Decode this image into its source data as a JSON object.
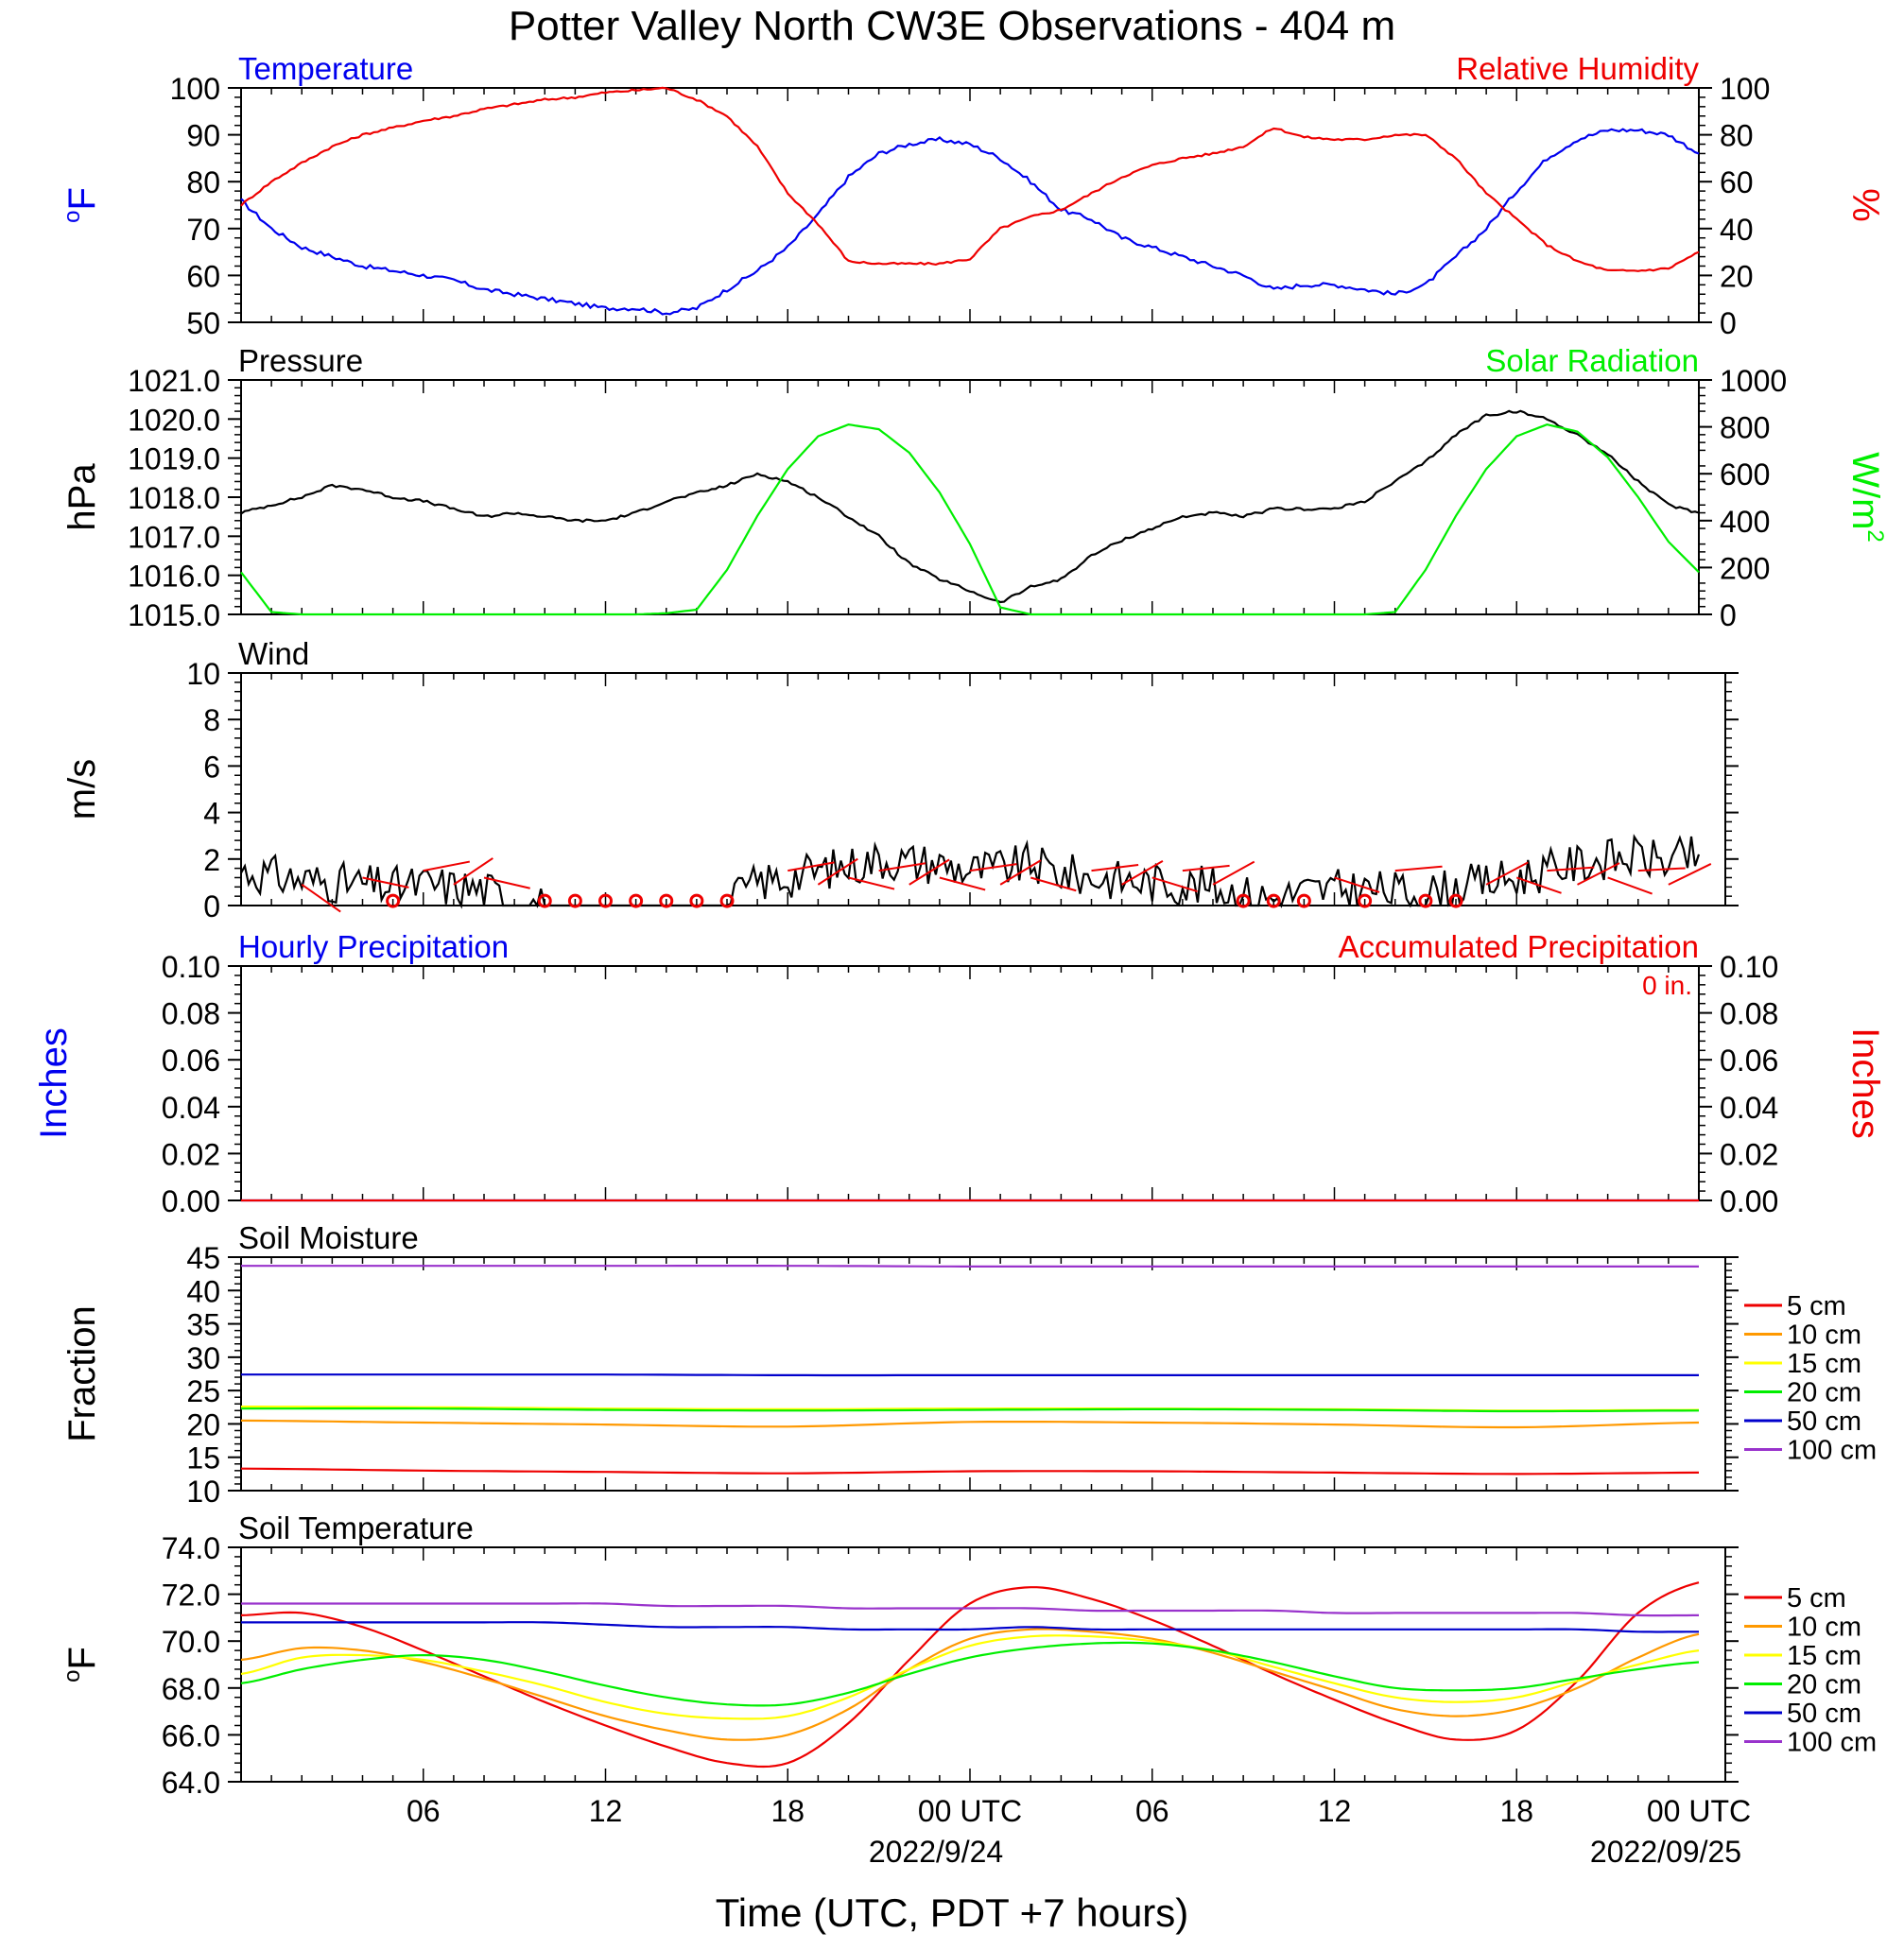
{
  "title": "Potter Valley North CW3E Observations - 404 m",
  "colors": {
    "temperature": "#0000ee",
    "humidity": "#ee0000",
    "pressure": "#000000",
    "solar": "#00ee00",
    "wind": "#000000",
    "barb": "#ee0000",
    "soil": [
      "#ee0000",
      "#ff9900",
      "#ffff00",
      "#00ee00",
      "#0000cc",
      "#9933cc"
    ]
  },
  "x_axis": {
    "title": "Time (UTC, PDT +7 hours)",
    "tick_labels": [
      "06",
      "12",
      "18",
      "00 UTC",
      "06",
      "12",
      "18",
      "00 UTC"
    ],
    "date_labels": [
      "2022/9/24",
      "2022/09/25"
    ]
  },
  "chart_data": [
    {
      "type": "line",
      "title_left": "Temperature",
      "title_right": "Relative Humidity",
      "ylabel_left": "oF",
      "ylabel_right": "%",
      "ylim_left": [
        50,
        100
      ],
      "ylim_right": [
        0,
        100
      ],
      "ticks_left": [
        "100",
        "90",
        "80",
        "70",
        "60",
        "50"
      ],
      "ticks_right": [
        "100",
        "80",
        "60",
        "40",
        "20",
        "0"
      ],
      "x_hours": [
        0,
        1,
        2,
        3,
        4,
        5,
        6,
        7,
        8,
        9,
        10,
        11,
        12,
        13,
        14,
        15,
        16,
        17,
        18,
        19,
        20,
        21,
        22,
        23,
        24,
        25,
        26,
        27,
        28,
        29,
        30,
        31,
        32,
        33,
        34,
        35,
        36,
        37,
        38,
        39,
        40,
        41,
        42,
        43,
        44,
        45,
        46,
        47,
        48
      ],
      "series": [
        {
          "name": "Temperature",
          "axis": "left",
          "values": [
            76,
            70,
            66,
            64,
            62,
            61,
            60,
            59,
            57,
            56,
            55,
            54,
            53,
            53,
            52,
            53,
            57,
            61,
            66,
            73,
            81,
            86,
            88,
            89,
            88,
            85,
            80,
            74,
            72,
            68,
            66,
            64,
            62,
            60,
            57,
            58,
            58,
            57,
            56,
            58,
            64,
            70,
            78,
            85,
            89,
            91,
            91,
            90,
            86
          ]
        },
        {
          "name": "Relative Humidity",
          "axis": "right",
          "values": [
            50,
            60,
            68,
            75,
            80,
            83,
            86,
            88,
            91,
            93,
            95,
            96,
            98,
            99,
            100,
            95,
            88,
            75,
            55,
            42,
            26,
            25,
            25,
            25,
            27,
            40,
            45,
            48,
            55,
            62,
            67,
            70,
            72,
            75,
            83,
            79,
            78,
            78,
            80,
            80,
            70,
            55,
            44,
            33,
            26,
            22,
            22,
            23,
            30
          ]
        }
      ]
    },
    {
      "type": "line",
      "title_left": "Pressure",
      "title_right": "Solar Radiation",
      "ylabel_left": "hPa",
      "ylabel_right": "W/m2",
      "ylim_left": [
        1015,
        1021
      ],
      "ylim_right": [
        0,
        1000
      ],
      "ticks_left": [
        "1021.0",
        "1020.0",
        "1019.0",
        "1018.0",
        "1017.0",
        "1016.0",
        "1015.0"
      ],
      "ticks_right": [
        "1000",
        "800",
        "600",
        "400",
        "200",
        "0"
      ],
      "x_hours": [
        0,
        1,
        2,
        3,
        4,
        5,
        6,
        7,
        8,
        9,
        10,
        11,
        12,
        13,
        14,
        15,
        16,
        17,
        18,
        19,
        20,
        21,
        22,
        23,
        24,
        25,
        26,
        27,
        28,
        29,
        30,
        31,
        32,
        33,
        34,
        35,
        36,
        37,
        38,
        39,
        40,
        41,
        42,
        43,
        44,
        45,
        46,
        47,
        48
      ],
      "series": [
        {
          "name": "Pressure",
          "axis": "left",
          "values": [
            1017.6,
            1017.8,
            1018.0,
            1018.3,
            1018.2,
            1018.0,
            1017.9,
            1017.7,
            1017.5,
            1017.6,
            1017.5,
            1017.4,
            1017.4,
            1017.6,
            1017.9,
            1018.1,
            1018.3,
            1018.6,
            1018.4,
            1018.0,
            1017.5,
            1017.0,
            1016.3,
            1015.9,
            1015.6,
            1015.3,
            1015.7,
            1015.9,
            1016.5,
            1016.9,
            1017.2,
            1017.5,
            1017.6,
            1017.5,
            1017.7,
            1017.7,
            1017.7,
            1017.9,
            1018.4,
            1018.9,
            1019.6,
            1020.1,
            1020.2,
            1020.0,
            1019.6,
            1019.1,
            1018.4,
            1017.8,
            1017.6
          ]
        },
        {
          "name": "Solar Radiation",
          "axis": "right",
          "values": [
            180,
            10,
            0,
            0,
            0,
            0,
            0,
            0,
            0,
            0,
            0,
            0,
            0,
            0,
            5,
            20,
            190,
            420,
            620,
            760,
            810,
            790,
            690,
            520,
            300,
            30,
            0,
            0,
            0,
            0,
            0,
            0,
            0,
            0,
            0,
            0,
            0,
            0,
            10,
            190,
            420,
            620,
            760,
            810,
            780,
            670,
            500,
            310,
            180
          ]
        }
      ]
    },
    {
      "type": "line",
      "title_left": "Wind",
      "ylabel_left": "m/s",
      "ylim_left": [
        0,
        10
      ],
      "ticks_left": [
        "10",
        "8",
        "6",
        "4",
        "2",
        "0"
      ],
      "x_hours": [
        0,
        1,
        2,
        3,
        4,
        5,
        6,
        7,
        8,
        9,
        10,
        11,
        12,
        13,
        14,
        15,
        16,
        17,
        18,
        19,
        20,
        21,
        22,
        23,
        24,
        25,
        26,
        27,
        28,
        29,
        30,
        31,
        32,
        33,
        34,
        35,
        36,
        37,
        38,
        39,
        40,
        41,
        42,
        43,
        44,
        45,
        46,
        47,
        48
      ],
      "series": [
        {
          "name": "Wind Speed",
          "values": [
            1.5,
            1.3,
            1.1,
            1.0,
            0.9,
            0.8,
            0.9,
            0.8,
            0.7,
            0.2,
            0.0,
            0.0,
            0.0,
            0.0,
            0.0,
            0.0,
            0.0,
            1.0,
            1.2,
            1.5,
            1.7,
            2.0,
            1.9,
            1.8,
            1.5,
            1.6,
            1.8,
            1.4,
            1.2,
            1.1,
            1.0,
            0.9,
            0.8,
            0.5,
            0.3,
            0.6,
            0.7,
            0.7,
            0.6,
            0.5,
            0.8,
            1.0,
            1.2,
            1.5,
            1.8,
            2.0,
            2.1,
            1.9,
            2.2
          ]
        }
      ],
      "calm_hours": [
        5,
        10,
        11,
        12,
        13,
        14,
        15,
        16,
        33,
        34,
        35,
        37,
        39,
        40
      ]
    },
    {
      "type": "line",
      "title_left": "Hourly Precipitation",
      "title_right": "Accumulated Precipitation",
      "accumulated_label": "0 in.",
      "ylabel_left": "Inches",
      "ylabel_right": "Inches",
      "ylim_left": [
        0,
        0.1
      ],
      "ylim_right": [
        0,
        0.1
      ],
      "ticks_left": [
        "0.10",
        "0.08",
        "0.06",
        "0.04",
        "0.02",
        "0.00"
      ],
      "ticks_right": [
        "0.10",
        "0.08",
        "0.06",
        "0.04",
        "0.02",
        "0.00"
      ],
      "x_hours": [
        0,
        48
      ],
      "series": [
        {
          "name": "Hourly Precipitation",
          "values": [
            0,
            0
          ]
        },
        {
          "name": "Accumulated Precipitation",
          "values": [
            0,
            0
          ]
        }
      ]
    },
    {
      "type": "line",
      "title_left": "Soil Moisture",
      "ylabel_left": "Fraction",
      "ylim_left": [
        10,
        45
      ],
      "ticks_left": [
        "45",
        "40",
        "35",
        "30",
        "25",
        "20",
        "15",
        "10"
      ],
      "x_hours": [
        0,
        6,
        12,
        18,
        24,
        30,
        36,
        42,
        48
      ],
      "series": [
        {
          "name": "5 cm",
          "values": [
            13.3,
            13.0,
            12.8,
            12.6,
            12.9,
            12.9,
            12.7,
            12.5,
            12.7
          ]
        },
        {
          "name": "10 cm",
          "values": [
            20.5,
            20.2,
            19.9,
            19.6,
            20.3,
            20.2,
            19.9,
            19.5,
            20.2
          ]
        },
        {
          "name": "15 cm",
          "values": [
            22.6,
            22.5,
            22.3,
            22.2,
            22.3,
            22.3,
            22.2,
            22.0,
            22.1
          ]
        },
        {
          "name": "20 cm",
          "values": [
            22.3,
            22.3,
            22.1,
            22.0,
            22.1,
            22.2,
            22.1,
            21.9,
            22.0
          ]
        },
        {
          "name": "50 cm",
          "values": [
            27.4,
            27.4,
            27.4,
            27.3,
            27.3,
            27.3,
            27.3,
            27.3,
            27.3
          ]
        },
        {
          "name": "100 cm",
          "values": [
            43.7,
            43.7,
            43.7,
            43.7,
            43.6,
            43.6,
            43.6,
            43.6,
            43.6
          ]
        }
      ]
    },
    {
      "type": "line",
      "title_left": "Soil Temperature",
      "ylabel_left": "oF",
      "ylim_left": [
        64,
        74
      ],
      "ticks_left": [
        "74.0",
        "72.0",
        "70.0",
        "68.0",
        "66.0",
        "64.0"
      ],
      "x_hours": [
        0,
        2,
        4,
        6,
        8,
        10,
        12,
        14,
        16,
        18,
        20,
        22,
        24,
        26,
        28,
        30,
        32,
        34,
        36,
        38,
        40,
        42,
        44,
        46,
        48
      ],
      "series": [
        {
          "name": "5 cm",
          "values": [
            71.1,
            71.2,
            70.6,
            69.6,
            68.5,
            67.4,
            66.4,
            65.5,
            64.8,
            64.8,
            66.5,
            69.2,
            71.6,
            72.3,
            71.8,
            70.9,
            69.8,
            68.6,
            67.5,
            66.5,
            65.8,
            66.2,
            68.3,
            71.2,
            72.5
          ]
        },
        {
          "name": "10 cm",
          "values": [
            69.2,
            69.7,
            69.6,
            69.1,
            68.4,
            67.6,
            66.8,
            66.2,
            65.8,
            66.0,
            67.1,
            68.8,
            70.1,
            70.5,
            70.4,
            70.1,
            69.5,
            68.7,
            67.9,
            67.1,
            66.8,
            67.1,
            68.0,
            69.3,
            70.3
          ]
        },
        {
          "name": "15 cm",
          "values": [
            68.6,
            69.3,
            69.4,
            69.2,
            68.7,
            68.1,
            67.4,
            66.9,
            66.7,
            66.8,
            67.6,
            68.8,
            69.8,
            70.2,
            70.2,
            70.0,
            69.6,
            68.9,
            68.2,
            67.6,
            67.4,
            67.6,
            68.3,
            69.0,
            69.6
          ]
        },
        {
          "name": "20 cm",
          "values": [
            68.2,
            68.8,
            69.2,
            69.4,
            69.2,
            68.7,
            68.1,
            67.6,
            67.3,
            67.3,
            67.8,
            68.6,
            69.3,
            69.7,
            69.9,
            69.9,
            69.6,
            69.1,
            68.5,
            68.0,
            67.9,
            68.0,
            68.4,
            68.8,
            69.1
          ]
        },
        {
          "name": "50 cm",
          "values": [
            70.8,
            70.8,
            70.8,
            70.8,
            70.8,
            70.8,
            70.7,
            70.6,
            70.6,
            70.6,
            70.5,
            70.5,
            70.5,
            70.6,
            70.5,
            70.5,
            70.5,
            70.5,
            70.5,
            70.5,
            70.5,
            70.5,
            70.5,
            70.4,
            70.4
          ]
        },
        {
          "name": "100 cm",
          "values": [
            71.6,
            71.6,
            71.6,
            71.6,
            71.6,
            71.6,
            71.6,
            71.5,
            71.5,
            71.5,
            71.4,
            71.4,
            71.4,
            71.4,
            71.3,
            71.3,
            71.3,
            71.3,
            71.2,
            71.2,
            71.2,
            71.2,
            71.2,
            71.1,
            71.1
          ]
        }
      ]
    }
  ]
}
